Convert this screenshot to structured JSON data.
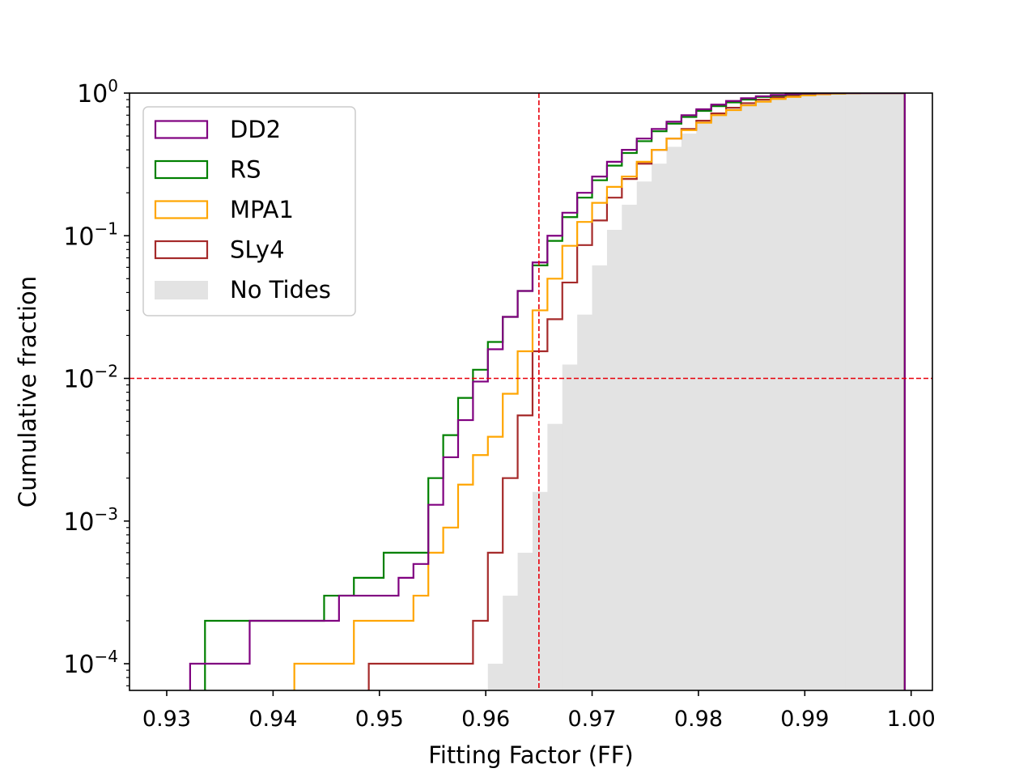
{
  "chart_data": {
    "type": "histogram-step-cumulative",
    "xlabel": "Fitting Factor (FF)",
    "ylabel": "Cumulative fraction",
    "y_scale": "log",
    "xlim": [
      0.9265,
      1.002
    ],
    "ylim": [
      6.5e-05,
      1.0
    ],
    "x_ticks": [
      {
        "value": 0.93,
        "label": "0.93"
      },
      {
        "value": 0.94,
        "label": "0.94"
      },
      {
        "value": 0.95,
        "label": "0.95"
      },
      {
        "value": 0.96,
        "label": "0.96"
      },
      {
        "value": 0.97,
        "label": "0.97"
      },
      {
        "value": 0.98,
        "label": "0.98"
      },
      {
        "value": 0.99,
        "label": "0.99"
      },
      {
        "value": 1.0,
        "label": "1.00"
      }
    ],
    "y_ticks": [
      {
        "value": 0.0001,
        "base": "10",
        "exp": "−4"
      },
      {
        "value": 0.001,
        "base": "10",
        "exp": "−3"
      },
      {
        "value": 0.01,
        "base": "10",
        "exp": "−2"
      },
      {
        "value": 0.1,
        "base": "10",
        "exp": "−1"
      },
      {
        "value": 1,
        "base": "10",
        "exp": "0"
      }
    ],
    "reference_lines": [
      {
        "orientation": "vertical",
        "value": 0.965,
        "color": "#e8000b",
        "style": "dashed"
      },
      {
        "orientation": "horizontal",
        "value": 0.01,
        "color": "#e8000b",
        "style": "dashed"
      }
    ],
    "legend_position": "upper-left",
    "series": [
      {
        "name": "DD2",
        "color": "#800080",
        "kind": "step",
        "x": [
          0.9329,
          0.9343,
          0.9357,
          0.9371,
          0.9385,
          0.9399,
          0.9413,
          0.9427,
          0.9441,
          0.9455,
          0.9469,
          0.9483,
          0.9497,
          0.9511,
          0.9525,
          0.9539,
          0.9553,
          0.9567,
          0.9581,
          0.9595,
          0.9609,
          0.9623,
          0.9637,
          0.9651,
          0.9665,
          0.9679,
          0.9693,
          0.9707,
          0.9721,
          0.9735,
          0.9749,
          0.9763,
          0.9777,
          0.9791,
          0.9805,
          0.9819,
          0.9833,
          0.9847,
          0.9861,
          0.9875,
          0.9889,
          0.9903,
          0.9917,
          0.9931,
          0.9945,
          0.9959,
          0.9973,
          0.9987
        ],
        "y": [
          0.0001,
          0.0001,
          0.0001,
          0.0001,
          0.0002,
          0.0002,
          0.0002,
          0.0002,
          0.0002,
          0.0002,
          0.0003,
          0.0003,
          0.0003,
          0.0003,
          0.0004,
          0.0005,
          0.0013,
          0.0028,
          0.0051,
          0.0095,
          0.016,
          0.027,
          0.041,
          0.065,
          0.1,
          0.145,
          0.2,
          0.26,
          0.33,
          0.4,
          0.48,
          0.56,
          0.63,
          0.7,
          0.77,
          0.83,
          0.88,
          0.92,
          0.95,
          0.97,
          0.985,
          0.993,
          0.997,
          0.999,
          1.0,
          1.0,
          1.0,
          1.0
        ]
      },
      {
        "name": "RS",
        "color": "#008000",
        "kind": "step",
        "x": [
          0.9343,
          0.9357,
          0.9371,
          0.9385,
          0.9399,
          0.9413,
          0.9427,
          0.9441,
          0.9455,
          0.9469,
          0.9483,
          0.9497,
          0.9511,
          0.9525,
          0.9539,
          0.9553,
          0.9567,
          0.9581,
          0.9595,
          0.9609,
          0.9623,
          0.9637,
          0.9651,
          0.9665,
          0.9679,
          0.9693,
          0.9707,
          0.9721,
          0.9735,
          0.9749,
          0.9763,
          0.9777,
          0.9791,
          0.9805,
          0.9819,
          0.9833,
          0.9847,
          0.9861,
          0.9875,
          0.9889,
          0.9903,
          0.9917,
          0.9931,
          0.9945,
          0.9959,
          0.9973,
          0.9987
        ],
        "y": [
          0.0002,
          0.0002,
          0.0002,
          0.0002,
          0.0002,
          0.0002,
          0.0002,
          0.0002,
          0.0003,
          0.0003,
          0.0004,
          0.0004,
          0.0006,
          0.0006,
          0.0006,
          0.002,
          0.004,
          0.0073,
          0.0115,
          0.018,
          0.027,
          0.041,
          0.062,
          0.092,
          0.135,
          0.185,
          0.245,
          0.31,
          0.38,
          0.46,
          0.54,
          0.61,
          0.68,
          0.75,
          0.81,
          0.86,
          0.9,
          0.94,
          0.96,
          0.98,
          0.99,
          0.996,
          0.998,
          1.0,
          1.0,
          1.0,
          1.0
        ]
      },
      {
        "name": "MPA1",
        "color": "#ffa500",
        "kind": "step",
        "x": [
          0.9427,
          0.9441,
          0.9455,
          0.9469,
          0.9483,
          0.9497,
          0.9511,
          0.9525,
          0.9539,
          0.9553,
          0.9567,
          0.9581,
          0.9595,
          0.9609,
          0.9623,
          0.9637,
          0.9651,
          0.9665,
          0.9679,
          0.9693,
          0.9707,
          0.9721,
          0.9735,
          0.9749,
          0.9763,
          0.9777,
          0.9791,
          0.9805,
          0.9819,
          0.9833,
          0.9847,
          0.9861,
          0.9875,
          0.9889,
          0.9903,
          0.9917,
          0.9931,
          0.9945,
          0.9959,
          0.9973,
          0.9987
        ],
        "y": [
          0.0001,
          0.0001,
          0.0001,
          0.0001,
          0.0002,
          0.0002,
          0.0002,
          0.0002,
          0.0003,
          0.0006,
          0.0009,
          0.0018,
          0.0029,
          0.0039,
          0.0078,
          0.0155,
          0.03,
          0.05,
          0.085,
          0.125,
          0.17,
          0.22,
          0.26,
          0.33,
          0.4,
          0.48,
          0.55,
          0.62,
          0.7,
          0.76,
          0.82,
          0.87,
          0.91,
          0.94,
          0.965,
          0.98,
          0.99,
          0.996,
          0.999,
          1.0,
          1.0
        ]
      },
      {
        "name": "SLy4",
        "color": "#a52a2a",
        "kind": "step",
        "x": [
          0.9497,
          0.9511,
          0.9525,
          0.9539,
          0.9553,
          0.9567,
          0.9581,
          0.9595,
          0.9609,
          0.9623,
          0.9637,
          0.9651,
          0.9665,
          0.9679,
          0.9693,
          0.9707,
          0.9721,
          0.9735,
          0.9749,
          0.9763,
          0.9777,
          0.9791,
          0.9805,
          0.9819,
          0.9833,
          0.9847,
          0.9861,
          0.9875,
          0.9889,
          0.9903,
          0.9917,
          0.9931,
          0.9945,
          0.9959,
          0.9973,
          0.9987
        ],
        "y": [
          0.0001,
          0.0001,
          0.0001,
          0.0001,
          0.0001,
          0.0001,
          0.0001,
          0.0002,
          0.0006,
          0.002,
          0.0055,
          0.0155,
          0.026,
          0.047,
          0.086,
          0.128,
          0.185,
          0.25,
          0.32,
          0.4,
          0.48,
          0.56,
          0.64,
          0.72,
          0.79,
          0.85,
          0.9,
          0.935,
          0.96,
          0.98,
          0.99,
          0.996,
          0.998,
          1.0,
          1.0,
          1.0
        ]
      },
      {
        "name": "No Tides",
        "color": "#e3e3e3",
        "kind": "filled",
        "x": [
          0.9609,
          0.9623,
          0.9637,
          0.9651,
          0.9665,
          0.9679,
          0.9693,
          0.9707,
          0.9721,
          0.9735,
          0.9749,
          0.9763,
          0.9777,
          0.9791,
          0.9805,
          0.9819,
          0.9833,
          0.9847,
          0.9861,
          0.9875,
          0.9889,
          0.9903,
          0.9917,
          0.9931,
          0.9945,
          0.9959,
          0.9973,
          0.9987
        ],
        "y": [
          0.0001,
          0.0003,
          0.0006,
          0.0016,
          0.0048,
          0.0125,
          0.028,
          0.062,
          0.11,
          0.165,
          0.24,
          0.32,
          0.42,
          0.52,
          0.61,
          0.7,
          0.78,
          0.85,
          0.9,
          0.94,
          0.965,
          0.98,
          0.99,
          0.996,
          0.999,
          1.0,
          1.0,
          1.0
        ]
      }
    ]
  }
}
